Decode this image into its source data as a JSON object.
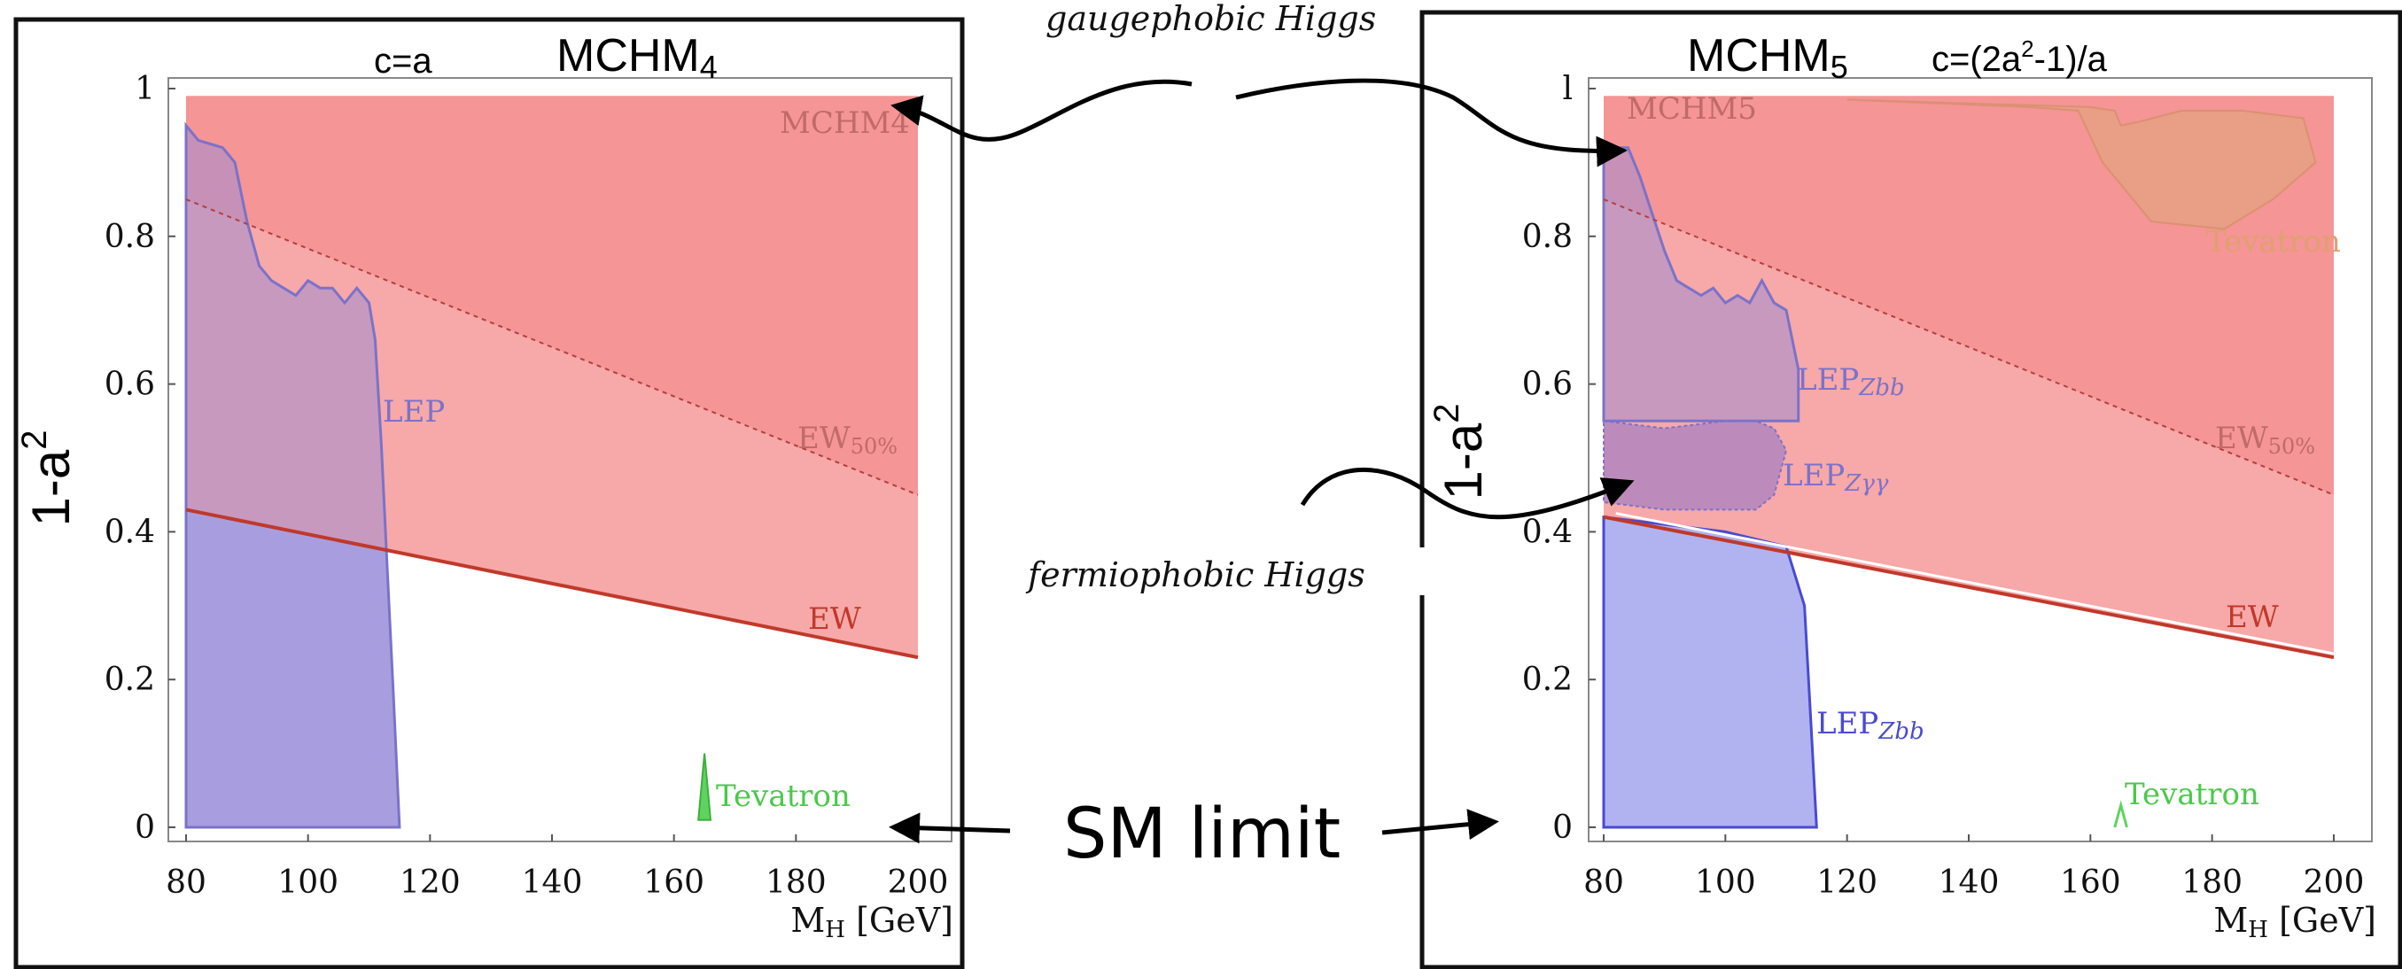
{
  "annotations": {
    "gaugephobic": "gaugephobic Higgs",
    "fermiophobic": "fermiophobic Higgs",
    "sm_limit": "SM limit"
  },
  "chart_data": [
    {
      "type": "area",
      "title": "MCHM",
      "title_sub": "4",
      "subtitle": "c=a",
      "xlabel": "M",
      "xlabel_sub": "H",
      "xlabel_unit": " [GeV]",
      "ylabel": "1-a",
      "ylabel_sup": "2",
      "xlim": [
        80,
        200
      ],
      "ylim": [
        0,
        1
      ],
      "xticks": [
        "80",
        "100",
        "120",
        "140",
        "160",
        "180",
        "200"
      ],
      "yticks": [
        "0",
        "0.2",
        "0.4",
        "0.6",
        "0.8",
        "1"
      ],
      "colors": {
        "ew": "#f7a8a8",
        "ew50": "#f59595",
        "lep": "#a9a8e6",
        "lep_line": "#7b72c9",
        "ew_line": "#c0392b",
        "tevatron": "#5fd35f"
      },
      "series": [
        {
          "name": "MCHM4",
          "x": [
            80,
            200
          ],
          "y": [
            0.99,
            0.99
          ]
        },
        {
          "name": "EW50%",
          "x": [
            80,
            200
          ],
          "y": [
            0.85,
            0.45
          ]
        },
        {
          "name": "EW",
          "x": [
            80,
            200
          ],
          "y": [
            0.43,
            0.23
          ]
        },
        {
          "name": "LEP",
          "x": [
            80,
            82,
            86,
            88,
            90,
            92,
            94,
            96,
            98,
            100,
            102,
            104,
            106,
            108,
            110,
            111,
            112,
            113,
            114,
            115
          ],
          "y": [
            0.95,
            0.93,
            0.92,
            0.9,
            0.82,
            0.76,
            0.74,
            0.73,
            0.72,
            0.74,
            0.73,
            0.73,
            0.71,
            0.73,
            0.71,
            0.66,
            0.52,
            0.35,
            0.18,
            0.0
          ]
        },
        {
          "name": "Tevatron",
          "x": [
            164,
            165,
            166
          ],
          "y": [
            0.01,
            0.1,
            0.01
          ]
        }
      ],
      "labels": {
        "mchm": "MCHM4",
        "ew50": "EW",
        "ew50_sub": "50%",
        "ew": "EW",
        "lep": "LEP",
        "tevatron": "Tevatron"
      }
    },
    {
      "type": "area",
      "title": "MCHM",
      "title_sub": "5",
      "subtitle": "c=(2a",
      "subtitle_sup": "2",
      "subtitle_end": "-1)/a",
      "xlabel": "M",
      "xlabel_sub": "H",
      "xlabel_unit": " [GeV]",
      "ylabel": "1-a",
      "ylabel_sup": "2",
      "xlim": [
        80,
        200
      ],
      "ylim": [
        0,
        1
      ],
      "xticks": [
        "80",
        "100",
        "120",
        "140",
        "160",
        "180",
        "200"
      ],
      "yticks": [
        "0",
        "0.2",
        "0.4",
        "0.6",
        "0.8",
        "l"
      ],
      "colors": {
        "ew": "#f7a8a8",
        "ew50": "#f59595",
        "lep": "#a9a8e6",
        "lep_line": "#7b72c9",
        "ew_line": "#c0392b",
        "tevatron": "#5fd35f",
        "tevatron_region": "#e8a085"
      },
      "series": [
        {
          "name": "MCHM5",
          "x": [
            80,
            200
          ],
          "y": [
            0.99,
            0.99
          ]
        },
        {
          "name": "EW50%",
          "x": [
            80,
            200
          ],
          "y": [
            0.85,
            0.45
          ]
        },
        {
          "name": "EW",
          "x": [
            80,
            200
          ],
          "y": [
            0.42,
            0.23
          ]
        },
        {
          "name": "LEPZbb",
          "x": [
            80,
            84,
            86,
            88,
            90,
            92,
            94,
            96,
            98,
            100,
            102,
            104,
            106,
            108,
            110,
            112
          ],
          "y": [
            0.92,
            0.92,
            0.88,
            0.83,
            0.78,
            0.74,
            0.73,
            0.72,
            0.73,
            0.71,
            0.72,
            0.71,
            0.74,
            0.71,
            0.7,
            0.62
          ]
        },
        {
          "name": "LEPZγγ",
          "x": [
            80,
            90,
            100,
            105,
            108,
            110,
            108,
            105,
            100,
            90,
            80
          ],
          "y": [
            0.55,
            0.54,
            0.55,
            0.55,
            0.54,
            0.51,
            0.45,
            0.43,
            0.43,
            0.43,
            0.44
          ]
        },
        {
          "name": "LEPZbb (blue)",
          "x": [
            80,
            100,
            110,
            113,
            114,
            115
          ],
          "y": [
            0.42,
            0.4,
            0.38,
            0.3,
            0.15,
            0.0
          ]
        },
        {
          "name": "Tevatron",
          "x": [
            164,
            165,
            166
          ],
          "y": [
            0.0,
            0.03,
            0.0
          ]
        }
      ],
      "labels": {
        "mchm": "MCHM5",
        "ew50": "EW",
        "ew50_sub": "50%",
        "ew": "EW",
        "lep_zbb": "LEP",
        "lep_zbb_sub": "Zbb",
        "lep_zgg": "LEP",
        "lep_zgg_sub": "Zγγ",
        "lep_zbb2": "LEP",
        "lep_zbb2_sub": "Zbb",
        "tevatron": "Tevatron",
        "tevatron_top": "Tevatron"
      }
    }
  ]
}
